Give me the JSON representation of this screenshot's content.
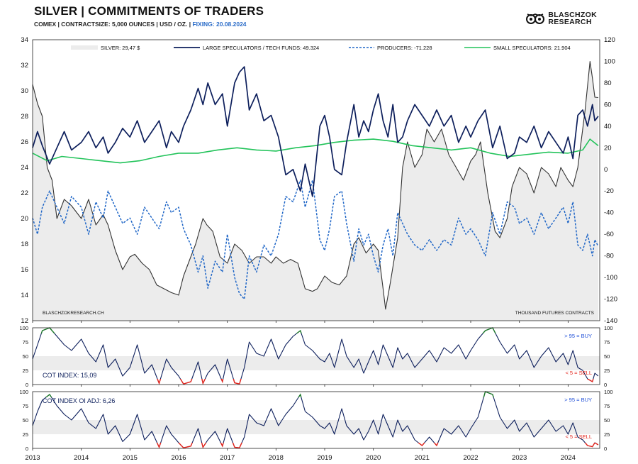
{
  "header": {
    "title": "SILVER | COMMITMENTS OF TRADERS",
    "subtitle": "COMEX | CONTRACTSIZE: 5,000 OUNCES | USD / OZ. |",
    "fixing": "FIXING: 20.08.2024",
    "logo_line1": "BLASCHZOK",
    "logo_line2": "RESEARCH"
  },
  "colors": {
    "silver": "#333333",
    "large_specs": "#0d1f5c",
    "producers": "#1f66c7",
    "small_specs": "#22c35a",
    "shade": "#ececec",
    "buy_text": "#1f4fd8",
    "sell_text": "#e3241b",
    "buy_line": "#1e7a2a",
    "sell_line": "#e3241b"
  },
  "chart_data": [
    {
      "type": "line",
      "name": "main",
      "title": "",
      "left_axis": {
        "ylim": [
          12,
          34
        ],
        "ticks": [
          12,
          14,
          16,
          18,
          20,
          22,
          24,
          26,
          28,
          30,
          32,
          34
        ]
      },
      "right_axis": {
        "ylim": [
          -140,
          120
        ],
        "ticks": [
          -140,
          -120,
          -100,
          -80,
          -60,
          -40,
          -20,
          0,
          20,
          40,
          60,
          80,
          100,
          120
        ]
      },
      "xlim": [
        2013,
        2024.65
      ],
      "x_ticks": [
        "2013",
        "2014",
        "2015",
        "2016",
        "2017",
        "2018",
        "2019",
        "2020",
        "2021",
        "2022",
        "2023",
        "2024"
      ],
      "legend": [
        "SILVER: 29,47 $",
        "LARGE SPECULATORS / TECH FUNDS: 49.324",
        "PRODUCERS: -71.228",
        "SMALL SPECULATORS: 21.904"
      ],
      "footer_left": "BLASCHZOKRESEARCH.CH",
      "footer_right": "THOUSAND  FUTURES CONTRACTS",
      "series": [
        {
          "name": "SILVER",
          "axis": "left",
          "x": [
            2013.0,
            2013.1,
            2013.2,
            2013.3,
            2013.4,
            2013.5,
            2013.65,
            2013.8,
            2013.9,
            2014.0,
            2014.15,
            2014.3,
            2014.45,
            2014.55,
            2014.7,
            2014.85,
            2015.0,
            2015.1,
            2015.25,
            2015.4,
            2015.55,
            2015.7,
            2015.85,
            2016.0,
            2016.1,
            2016.2,
            2016.35,
            2016.5,
            2016.58,
            2016.7,
            2016.85,
            2017.0,
            2017.15,
            2017.3,
            2017.45,
            2017.6,
            2017.75,
            2017.9,
            2018.0,
            2018.15,
            2018.3,
            2018.45,
            2018.6,
            2018.75,
            2018.85,
            2019.0,
            2019.15,
            2019.3,
            2019.45,
            2019.6,
            2019.7,
            2019.85,
            2020.0,
            2020.1,
            2020.2,
            2020.25,
            2020.35,
            2020.5,
            2020.6,
            2020.7,
            2020.85,
            2021.0,
            2021.1,
            2021.25,
            2021.4,
            2021.55,
            2021.7,
            2021.85,
            2022.0,
            2022.1,
            2022.2,
            2022.35,
            2022.5,
            2022.6,
            2022.75,
            2022.85,
            2023.0,
            2023.15,
            2023.3,
            2023.45,
            2023.6,
            2023.75,
            2023.85,
            2024.0,
            2024.1,
            2024.2,
            2024.3,
            2024.35,
            2024.45,
            2024.5,
            2024.55,
            2024.62
          ],
          "values": [
            30.5,
            29.0,
            28.0,
            24.0,
            23.0,
            20.0,
            21.5,
            21.0,
            20.5,
            20.0,
            21.5,
            19.5,
            20.3,
            19.5,
            17.5,
            16.0,
            17.0,
            17.2,
            16.5,
            16.0,
            14.8,
            14.5,
            14.2,
            14.0,
            15.5,
            16.5,
            18.0,
            20.0,
            19.5,
            19.0,
            17.0,
            16.5,
            18.0,
            17.5,
            16.5,
            17.0,
            17.0,
            16.5,
            17.0,
            16.5,
            16.8,
            16.5,
            14.5,
            14.3,
            14.5,
            15.5,
            15.0,
            14.8,
            15.5,
            18.0,
            18.5,
            17.3,
            18.0,
            17.5,
            14.5,
            12.9,
            15.0,
            18.5,
            24.0,
            26.0,
            24.0,
            25.0,
            27.0,
            26.0,
            27.0,
            25.0,
            24.0,
            23.0,
            24.5,
            25.0,
            26.0,
            22.0,
            19.0,
            18.5,
            20.0,
            22.5,
            24.0,
            23.5,
            22.0,
            24.0,
            23.5,
            22.5,
            24.0,
            23.0,
            22.5,
            24.0,
            27.0,
            28.5,
            32.3,
            31.0,
            29.5,
            29.47
          ]
        },
        {
          "name": "LARGE SPECULATORS / TECH FUNDS",
          "axis": "right",
          "x": [
            2013.0,
            2013.1,
            2013.2,
            2013.35,
            2013.5,
            2013.65,
            2013.8,
            2014.0,
            2014.15,
            2014.3,
            2014.45,
            2014.55,
            2014.7,
            2014.85,
            2015.0,
            2015.15,
            2015.3,
            2015.45,
            2015.6,
            2015.75,
            2015.85,
            2016.0,
            2016.1,
            2016.25,
            2016.4,
            2016.5,
            2016.6,
            2016.75,
            2016.9,
            2017.0,
            2017.15,
            2017.25,
            2017.35,
            2017.45,
            2017.6,
            2017.75,
            2017.9,
            2018.05,
            2018.2,
            2018.35,
            2018.5,
            2018.6,
            2018.75,
            2018.9,
            2019.0,
            2019.1,
            2019.2,
            2019.35,
            2019.45,
            2019.6,
            2019.7,
            2019.8,
            2019.9,
            2020.0,
            2020.1,
            2020.2,
            2020.3,
            2020.4,
            2020.5,
            2020.6,
            2020.7,
            2020.85,
            2021.0,
            2021.15,
            2021.3,
            2021.45,
            2021.6,
            2021.75,
            2021.9,
            2022.0,
            2022.15,
            2022.3,
            2022.45,
            2022.6,
            2022.75,
            2022.9,
            2023.0,
            2023.15,
            2023.3,
            2023.45,
            2023.6,
            2023.75,
            2023.9,
            2024.0,
            2024.1,
            2024.2,
            2024.3,
            2024.4,
            2024.5,
            2024.55,
            2024.62
          ],
          "values": [
            20,
            35,
            22,
            5,
            20,
            35,
            18,
            25,
            35,
            20,
            30,
            15,
            25,
            38,
            30,
            45,
            25,
            35,
            45,
            20,
            35,
            25,
            40,
            55,
            75,
            60,
            80,
            60,
            70,
            40,
            80,
            90,
            95,
            55,
            70,
            45,
            50,
            30,
            -5,
            0,
            -20,
            5,
            -25,
            40,
            50,
            30,
            0,
            -5,
            25,
            60,
            30,
            45,
            35,
            55,
            70,
            45,
            30,
            60,
            25,
            30,
            45,
            60,
            50,
            40,
            55,
            40,
            50,
            25,
            40,
            30,
            45,
            55,
            20,
            40,
            10,
            15,
            30,
            25,
            40,
            20,
            35,
            25,
            15,
            30,
            10,
            50,
            55,
            40,
            60,
            45,
            49.3
          ]
        },
        {
          "name": "PRODUCERS",
          "axis": "right",
          "x": [
            2013.0,
            2013.1,
            2013.2,
            2013.35,
            2013.5,
            2013.65,
            2013.8,
            2014.0,
            2014.15,
            2014.3,
            2014.45,
            2014.55,
            2014.7,
            2014.85,
            2015.0,
            2015.15,
            2015.3,
            2015.45,
            2015.6,
            2015.75,
            2015.85,
            2016.0,
            2016.1,
            2016.25,
            2016.4,
            2016.5,
            2016.6,
            2016.75,
            2016.9,
            2017.0,
            2017.15,
            2017.25,
            2017.35,
            2017.45,
            2017.6,
            2017.75,
            2017.9,
            2018.05,
            2018.2,
            2018.35,
            2018.5,
            2018.6,
            2018.75,
            2018.9,
            2019.0,
            2019.1,
            2019.2,
            2019.35,
            2019.45,
            2019.6,
            2019.7,
            2019.8,
            2019.9,
            2020.0,
            2020.1,
            2020.2,
            2020.3,
            2020.4,
            2020.5,
            2020.6,
            2020.7,
            2020.85,
            2021.0,
            2021.15,
            2021.3,
            2021.45,
            2021.6,
            2021.75,
            2021.9,
            2022.0,
            2022.15,
            2022.3,
            2022.45,
            2022.6,
            2022.75,
            2022.9,
            2023.0,
            2023.15,
            2023.3,
            2023.45,
            2023.6,
            2023.75,
            2023.9,
            2024.0,
            2024.1,
            2024.2,
            2024.3,
            2024.4,
            2024.5,
            2024.55,
            2024.62
          ],
          "values": [
            -45,
            -60,
            -35,
            -20,
            -35,
            -50,
            -25,
            -35,
            -60,
            -30,
            -45,
            -20,
            -35,
            -50,
            -45,
            -60,
            -35,
            -45,
            -55,
            -30,
            -40,
            -35,
            -55,
            -70,
            -95,
            -80,
            -110,
            -85,
            -95,
            -60,
            -100,
            -115,
            -120,
            -80,
            -95,
            -70,
            -80,
            -60,
            -25,
            -30,
            -10,
            -35,
            -10,
            -65,
            -75,
            -55,
            -25,
            -20,
            -50,
            -85,
            -55,
            -70,
            -60,
            -80,
            -95,
            -70,
            -55,
            -80,
            -40,
            -50,
            -60,
            -70,
            -75,
            -65,
            -75,
            -65,
            -70,
            -45,
            -60,
            -55,
            -65,
            -80,
            -40,
            -60,
            -30,
            -35,
            -50,
            -45,
            -60,
            -40,
            -55,
            -45,
            -35,
            -50,
            -30,
            -70,
            -75,
            -60,
            -80,
            -65,
            -71.2
          ]
        },
        {
          "name": "SMALL SPECULATORS",
          "axis": "right",
          "x": [
            2013.0,
            2013.3,
            2013.6,
            2014.0,
            2014.4,
            2014.8,
            2015.2,
            2015.6,
            2016.0,
            2016.4,
            2016.8,
            2017.2,
            2017.6,
            2018.0,
            2018.4,
            2018.8,
            2019.2,
            2019.6,
            2020.0,
            2020.4,
            2020.8,
            2021.2,
            2021.6,
            2022.0,
            2022.4,
            2022.8,
            2023.2,
            2023.6,
            2024.0,
            2024.3,
            2024.45,
            2024.62
          ],
          "values": [
            15,
            8,
            12,
            10,
            8,
            6,
            8,
            12,
            15,
            15,
            18,
            20,
            18,
            17,
            20,
            22,
            25,
            27,
            28,
            26,
            22,
            20,
            18,
            20,
            15,
            12,
            14,
            16,
            15,
            18,
            28,
            21.9
          ]
        }
      ]
    },
    {
      "type": "line",
      "name": "cot_index",
      "label": "COT INDEX: 15,09",
      "ylim": [
        0,
        100
      ],
      "ticks": [
        0,
        25,
        50,
        75,
        100
      ],
      "buy_label": "> 95 = BUY",
      "sell_label": "< 5 = SELL",
      "x": [
        2013.0,
        2013.1,
        2013.2,
        2013.35,
        2013.5,
        2013.65,
        2013.8,
        2014.0,
        2014.15,
        2014.3,
        2014.45,
        2014.55,
        2014.7,
        2014.85,
        2015.0,
        2015.15,
        2015.3,
        2015.45,
        2015.6,
        2015.75,
        2015.85,
        2016.0,
        2016.1,
        2016.25,
        2016.4,
        2016.5,
        2016.6,
        2016.75,
        2016.9,
        2017.0,
        2017.15,
        2017.25,
        2017.35,
        2017.45,
        2017.6,
        2017.75,
        2017.9,
        2018.05,
        2018.2,
        2018.35,
        2018.5,
        2018.6,
        2018.75,
        2018.9,
        2019.0,
        2019.1,
        2019.2,
        2019.35,
        2019.45,
        2019.6,
        2019.7,
        2019.8,
        2019.9,
        2020.0,
        2020.1,
        2020.2,
        2020.3,
        2020.4,
        2020.5,
        2020.6,
        2020.7,
        2020.85,
        2021.0,
        2021.15,
        2021.3,
        2021.45,
        2021.6,
        2021.75,
        2021.9,
        2022.0,
        2022.15,
        2022.3,
        2022.45,
        2022.6,
        2022.75,
        2022.9,
        2023.0,
        2023.15,
        2023.3,
        2023.45,
        2023.6,
        2023.75,
        2023.9,
        2024.0,
        2024.1,
        2024.2,
        2024.3,
        2024.4,
        2024.5,
        2024.55,
        2024.62
      ],
      "values": [
        45,
        70,
        95,
        100,
        85,
        70,
        60,
        80,
        55,
        40,
        70,
        30,
        45,
        15,
        30,
        70,
        20,
        35,
        2,
        45,
        30,
        15,
        1,
        5,
        40,
        2,
        20,
        35,
        5,
        45,
        3,
        1,
        30,
        75,
        55,
        50,
        80,
        45,
        70,
        85,
        95,
        70,
        60,
        45,
        40,
        55,
        30,
        80,
        50,
        30,
        45,
        20,
        40,
        60,
        35,
        70,
        50,
        30,
        65,
        45,
        55,
        30,
        45,
        60,
        40,
        65,
        55,
        70,
        45,
        60,
        80,
        95,
        100,
        75,
        55,
        70,
        45,
        60,
        30,
        50,
        65,
        40,
        55,
        35,
        60,
        30,
        25,
        10,
        5,
        20,
        15.09
      ]
    },
    {
      "type": "line",
      "name": "cot_index_oi_adj",
      "label": "COT INDEX OI ADJ: 6,26",
      "ylim": [
        0,
        100
      ],
      "ticks": [
        0,
        25,
        50,
        75,
        100
      ],
      "buy_label": "> 95 = BUY",
      "sell_label": "< 5 = SELL",
      "x": [
        2013.0,
        2013.1,
        2013.2,
        2013.35,
        2013.5,
        2013.65,
        2013.8,
        2014.0,
        2014.15,
        2014.3,
        2014.45,
        2014.55,
        2014.7,
        2014.85,
        2015.0,
        2015.15,
        2015.3,
        2015.45,
        2015.6,
        2015.75,
        2015.85,
        2016.0,
        2016.1,
        2016.25,
        2016.4,
        2016.5,
        2016.6,
        2016.75,
        2016.9,
        2017.0,
        2017.15,
        2017.25,
        2017.35,
        2017.45,
        2017.6,
        2017.75,
        2017.9,
        2018.05,
        2018.2,
        2018.35,
        2018.5,
        2018.6,
        2018.75,
        2018.9,
        2019.0,
        2019.1,
        2019.2,
        2019.35,
        2019.45,
        2019.6,
        2019.7,
        2019.8,
        2019.9,
        2020.0,
        2020.1,
        2020.2,
        2020.3,
        2020.4,
        2020.5,
        2020.6,
        2020.7,
        2020.85,
        2021.0,
        2021.15,
        2021.3,
        2021.45,
        2021.6,
        2021.75,
        2021.9,
        2022.0,
        2022.15,
        2022.3,
        2022.45,
        2022.6,
        2022.75,
        2022.9,
        2023.0,
        2023.15,
        2023.3,
        2023.45,
        2023.6,
        2023.75,
        2023.9,
        2024.0,
        2024.1,
        2024.2,
        2024.3,
        2024.4,
        2024.5,
        2024.55,
        2024.62
      ],
      "values": [
        40,
        65,
        85,
        95,
        75,
        60,
        50,
        70,
        45,
        35,
        60,
        25,
        40,
        12,
        25,
        60,
        15,
        30,
        2,
        40,
        25,
        10,
        1,
        4,
        35,
        2,
        15,
        30,
        4,
        35,
        2,
        1,
        20,
        60,
        45,
        40,
        70,
        40,
        60,
        75,
        95,
        65,
        55,
        40,
        35,
        45,
        25,
        70,
        40,
        25,
        35,
        15,
        30,
        50,
        25,
        60,
        40,
        20,
        50,
        30,
        40,
        15,
        5,
        20,
        5,
        35,
        25,
        40,
        20,
        35,
        55,
        100,
        95,
        55,
        35,
        50,
        30,
        45,
        20,
        35,
        50,
        30,
        40,
        25,
        45,
        20,
        15,
        5,
        3,
        10,
        6.26
      ]
    }
  ]
}
